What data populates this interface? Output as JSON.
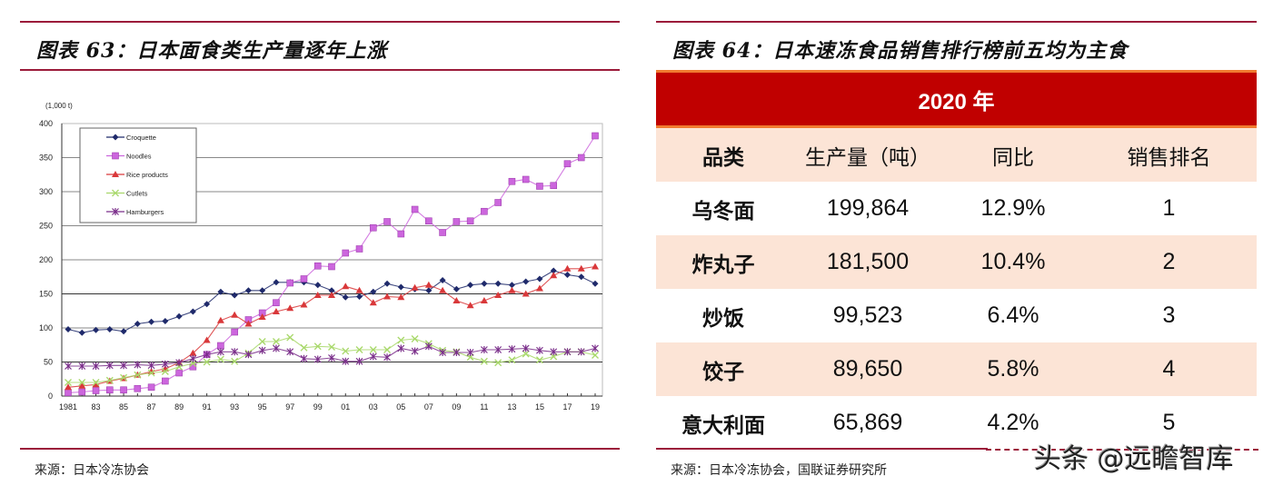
{
  "left_panel": {
    "title": "图表 63：日本面食类生产量逐年上涨",
    "source": "来源：日本冷冻协会"
  },
  "right_panel": {
    "title": "图表 64：日本速冻食品销售排行榜前五均为主食",
    "year_header": "2020 年",
    "columns": [
      "品类",
      "生产量（吨）",
      "同比",
      "销售排名"
    ],
    "rows": [
      {
        "category": "乌冬面",
        "production": "199,864",
        "yoy": "12.9%",
        "rank": "1"
      },
      {
        "category": "炸丸子",
        "production": "181,500",
        "yoy": "10.4%",
        "rank": "2"
      },
      {
        "category": "炒饭",
        "production": "99,523",
        "yoy": "6.4%",
        "rank": "3"
      },
      {
        "category": "饺子",
        "production": "89,650",
        "yoy": "5.8%",
        "rank": "4"
      },
      {
        "category": "意大利面",
        "production": "65,869",
        "yoy": "4.2%",
        "rank": "5"
      }
    ],
    "source": "来源：日本冷冻协会，国联证券研究所"
  },
  "watermark": "头条 @远瞻智库",
  "colors": {
    "rule": "#9b1b3a",
    "table_header_red": "#c00000",
    "table_stripe_orange": "#f07a30",
    "table_peach": "#fce4d6"
  },
  "chart_data": {
    "type": "line",
    "title": "",
    "unit_label": "(1,000 t)",
    "xlabel": "",
    "ylabel": "(1,000 t)",
    "ylim": [
      0,
      400
    ],
    "yticks": [
      0,
      50,
      100,
      150,
      200,
      250,
      300,
      350,
      400
    ],
    "xtick_labels": [
      "1981",
      "83",
      "85",
      "87",
      "89",
      "91",
      "93",
      "95",
      "97",
      "99",
      "01",
      "03",
      "05",
      "07",
      "09",
      "11",
      "13",
      "15",
      "17",
      "19"
    ],
    "grid": true,
    "legend_position": "upper-left-inset",
    "x": [
      1981,
      1982,
      1983,
      1984,
      1985,
      1986,
      1987,
      1988,
      1989,
      1990,
      1991,
      1992,
      1993,
      1994,
      1995,
      1996,
      1997,
      1998,
      1999,
      2000,
      2001,
      2002,
      2003,
      2004,
      2005,
      2006,
      2007,
      2008,
      2009,
      2010,
      2011,
      2012,
      2013,
      2014,
      2015,
      2016,
      2017,
      2018,
      2019
    ],
    "series": [
      {
        "name": "Croquette",
        "color": "#1f2a6b",
        "marker": "diamond",
        "values": [
          98,
          93,
          97,
          98,
          95,
          106,
          109,
          110,
          117,
          124,
          135,
          153,
          148,
          155,
          155,
          167,
          167,
          167,
          163,
          155,
          145,
          146,
          153,
          165,
          160,
          157,
          155,
          170,
          157,
          163,
          165,
          165,
          163,
          168,
          172,
          184,
          178,
          175,
          165
        ]
      },
      {
        "name": "Noodles",
        "color": "#cc66dd",
        "marker": "square",
        "values": [
          5,
          6,
          8,
          9,
          9,
          11,
          13,
          22,
          34,
          43,
          61,
          74,
          94,
          112,
          122,
          137,
          166,
          172,
          191,
          190,
          210,
          216,
          247,
          256,
          238,
          274,
          257,
          240,
          256,
          257,
          271,
          284,
          315,
          318,
          308,
          309,
          341,
          350,
          382
        ]
      },
      {
        "name": "Rice products",
        "color": "#d9383a",
        "marker": "triangle",
        "values": [
          13,
          15,
          17,
          22,
          26,
          31,
          36,
          40,
          49,
          63,
          82,
          111,
          119,
          106,
          116,
          124,
          129,
          134,
          148,
          148,
          161,
          155,
          137,
          146,
          145,
          159,
          163,
          155,
          140,
          133,
          140,
          148,
          155,
          150,
          158,
          177,
          187,
          187,
          190
        ]
      },
      {
        "name": "Cutlets",
        "color": "#a8d86a",
        "marker": "x",
        "values": [
          20,
          20,
          20,
          23,
          27,
          31,
          34,
          36,
          43,
          48,
          50,
          54,
          51,
          63,
          80,
          80,
          86,
          71,
          73,
          72,
          66,
          68,
          68,
          68,
          82,
          84,
          77,
          67,
          65,
          57,
          51,
          49,
          53,
          62,
          53,
          58,
          65,
          65,
          60
        ]
      },
      {
        "name": "Hamburgers",
        "color": "#7a2e8a",
        "marker": "star",
        "values": [
          44,
          44,
          44,
          45,
          45,
          46,
          45,
          47,
          49,
          55,
          61,
          65,
          65,
          61,
          67,
          70,
          65,
          55,
          54,
          56,
          51,
          51,
          58,
          57,
          70,
          66,
          73,
          64,
          64,
          64,
          68,
          68,
          69,
          70,
          67,
          65,
          65,
          65,
          70
        ]
      }
    ]
  }
}
